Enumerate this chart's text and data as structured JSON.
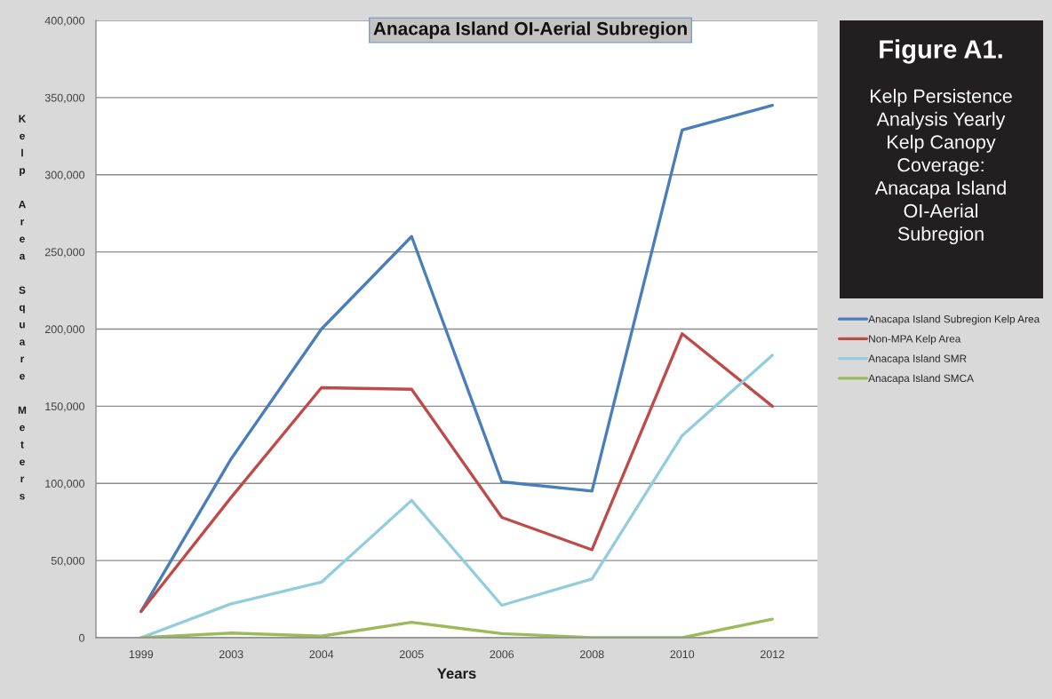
{
  "chart_data": {
    "type": "line",
    "title": "Anacapa Island OI-Aerial Subregion",
    "xlabel": "Years",
    "ylabel": "Kelp Area Square Meters",
    "annotations": [
      "Figure A1.",
      "Kelp Persistence\nAnalysis Yearly\nKelp Canopy\nCoverage:\nAnacapa Island\nOI-Aerial\nSubregion"
    ],
    "categories": [
      "1999",
      "2003",
      "2004",
      "2005",
      "2006",
      "2008",
      "2010",
      "2012"
    ],
    "series": [
      {
        "name": "Anacapa Island Subregion Kelp Area",
        "color": "#4a7ebb",
        "values": [
          17000,
          116000,
          200000,
          260000,
          101000,
          95000,
          329000,
          345000
        ]
      },
      {
        "name": "Non-MPA Kelp Area",
        "color": "#be4b48",
        "values": [
          17000,
          91000,
          162000,
          161000,
          78000,
          57000,
          197000,
          150000
        ]
      },
      {
        "name": "Anacapa Island SMR",
        "color": "#93cddd",
        "values": [
          0,
          22000,
          36000,
          89000,
          21000,
          38000,
          131000,
          183000
        ]
      },
      {
        "name": "Anacapa Island SMCA",
        "color": "#9bbb59",
        "values": [
          0,
          3000,
          1000,
          10000,
          2700,
          0,
          0,
          12000
        ]
      }
    ],
    "ylim": [
      0,
      400000
    ],
    "yticks": [
      0,
      {
        "value": 50000,
        "label": "50,000"
      },
      {
        "value": 100000,
        "label": "100,000"
      },
      {
        "value": 150000,
        "label": "150,000"
      },
      {
        "value": 200000,
        "label": "200,000"
      },
      {
        "value": 250000,
        "label": "250,000"
      },
      {
        "value": 300000,
        "label": "300,000"
      },
      {
        "value": 350000,
        "label": "350,000"
      },
      {
        "value": 400000,
        "label": "400,000"
      }
    ],
    "grid": "y",
    "legend": "right"
  }
}
